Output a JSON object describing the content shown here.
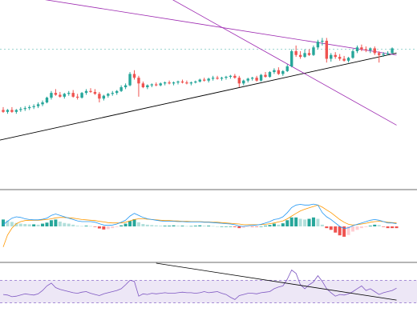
{
  "colors": {
    "background": "#ffffff",
    "up_candle": "#26a69a",
    "down_candle": "#ef5350",
    "trendline": "#000000",
    "channel_line": "#9c27b0",
    "price_level_line": "#26a69a",
    "macd_line": "#2196f3",
    "signal_line": "#ff9800",
    "hist_up_strong": "#26a69a",
    "hist_up_weak": "#b2dfdb",
    "hist_down_strong": "#ef5350",
    "hist_down_weak": "#ffcdd2",
    "rsi_line": "#7e57c2",
    "rsi_band": "#ede7f6",
    "pane_separator": "#6b6b6b"
  },
  "chart_data": [
    {
      "type": "candlestick",
      "title": "",
      "xlabel": "",
      "ylabel": "",
      "grid": false,
      "ylim": [
        0,
        100
      ],
      "price_level": 74,
      "candles": [
        {
          "o": 42,
          "h": 43.5,
          "l": 40.5,
          "c": 41
        },
        {
          "o": 41,
          "h": 42.5,
          "l": 40,
          "c": 42
        },
        {
          "o": 42,
          "h": 43.5,
          "l": 40.5,
          "c": 41
        },
        {
          "o": 41,
          "h": 42.5,
          "l": 40,
          "c": 42
        },
        {
          "o": 42,
          "h": 43.5,
          "l": 41,
          "c": 42.5
        },
        {
          "o": 42.5,
          "h": 44,
          "l": 41.5,
          "c": 43
        },
        {
          "o": 43,
          "h": 44.5,
          "l": 42,
          "c": 43.5
        },
        {
          "o": 43.5,
          "h": 45,
          "l": 42.5,
          "c": 44
        },
        {
          "o": 44,
          "h": 46,
          "l": 43,
          "c": 45
        },
        {
          "o": 45,
          "h": 47,
          "l": 44,
          "c": 46
        },
        {
          "o": 46,
          "h": 49,
          "l": 45.5,
          "c": 48.5
        },
        {
          "o": 48.5,
          "h": 52,
          "l": 47.5,
          "c": 51
        },
        {
          "o": 51,
          "h": 53,
          "l": 49.5,
          "c": 50
        },
        {
          "o": 50,
          "h": 51.5,
          "l": 48.5,
          "c": 49
        },
        {
          "o": 49,
          "h": 51,
          "l": 48,
          "c": 50.5
        },
        {
          "o": 50.5,
          "h": 52,
          "l": 49.5,
          "c": 51
        },
        {
          "o": 51,
          "h": 52.5,
          "l": 48.5,
          "c": 49
        },
        {
          "o": 49,
          "h": 50.5,
          "l": 47.5,
          "c": 48.5
        },
        {
          "o": 48.5,
          "h": 51.5,
          "l": 48,
          "c": 51
        },
        {
          "o": 51,
          "h": 53,
          "l": 50,
          "c": 52
        },
        {
          "o": 52,
          "h": 53.5,
          "l": 51,
          "c": 51.5
        },
        {
          "o": 51.5,
          "h": 53,
          "l": 50,
          "c": 50.5
        },
        {
          "o": 50.5,
          "h": 51.5,
          "l": 46,
          "c": 48
        },
        {
          "o": 48,
          "h": 50,
          "l": 47,
          "c": 49.5
        },
        {
          "o": 49.5,
          "h": 51,
          "l": 48.5,
          "c": 50.5
        },
        {
          "o": 50.5,
          "h": 52,
          "l": 49.5,
          "c": 51
        },
        {
          "o": 51,
          "h": 52.5,
          "l": 50,
          "c": 52
        },
        {
          "o": 52,
          "h": 55,
          "l": 51.5,
          "c": 54
        },
        {
          "o": 54,
          "h": 56,
          "l": 53,
          "c": 55
        },
        {
          "o": 55,
          "h": 62,
          "l": 54.5,
          "c": 61
        },
        {
          "o": 61,
          "h": 63,
          "l": 58,
          "c": 59
        },
        {
          "o": 59,
          "h": 60,
          "l": 49,
          "c": 56
        },
        {
          "o": 56,
          "h": 57,
          "l": 53.5,
          "c": 54
        },
        {
          "o": 54,
          "h": 55.5,
          "l": 53,
          "c": 55
        },
        {
          "o": 55,
          "h": 56,
          "l": 54,
          "c": 55.5
        },
        {
          "o": 55.5,
          "h": 56.5,
          "l": 54.5,
          "c": 55
        },
        {
          "o": 55,
          "h": 56.5,
          "l": 54.5,
          "c": 56
        },
        {
          "o": 56,
          "h": 57,
          "l": 55,
          "c": 56.5
        },
        {
          "o": 56.5,
          "h": 57.5,
          "l": 55.5,
          "c": 56
        },
        {
          "o": 56,
          "h": 57,
          "l": 55,
          "c": 56.5
        },
        {
          "o": 56.5,
          "h": 57.5,
          "l": 55.5,
          "c": 57
        },
        {
          "o": 57,
          "h": 58,
          "l": 56,
          "c": 56.5
        },
        {
          "o": 56.5,
          "h": 57.5,
          "l": 55.5,
          "c": 56
        },
        {
          "o": 56,
          "h": 57,
          "l": 55,
          "c": 56.5
        },
        {
          "o": 56.5,
          "h": 57.5,
          "l": 56,
          "c": 57
        },
        {
          "o": 57,
          "h": 58.5,
          "l": 56.5,
          "c": 58
        },
        {
          "o": 58,
          "h": 59,
          "l": 57,
          "c": 57.5
        },
        {
          "o": 57.5,
          "h": 59,
          "l": 56.5,
          "c": 58.5
        },
        {
          "o": 58.5,
          "h": 60,
          "l": 57.5,
          "c": 59
        },
        {
          "o": 59,
          "h": 60,
          "l": 58,
          "c": 58.5
        },
        {
          "o": 58.5,
          "h": 59.5,
          "l": 57.5,
          "c": 59
        },
        {
          "o": 59,
          "h": 60,
          "l": 58,
          "c": 59.5
        },
        {
          "o": 59.5,
          "h": 60.5,
          "l": 58.5,
          "c": 60
        },
        {
          "o": 60,
          "h": 61,
          "l": 58.5,
          "c": 59
        },
        {
          "o": 59,
          "h": 60,
          "l": 54,
          "c": 56
        },
        {
          "o": 56,
          "h": 58,
          "l": 55,
          "c": 57.5
        },
        {
          "o": 57.5,
          "h": 59,
          "l": 56.5,
          "c": 58.5
        },
        {
          "o": 58.5,
          "h": 59.5,
          "l": 57.5,
          "c": 59
        },
        {
          "o": 59,
          "h": 60,
          "l": 57,
          "c": 57.5
        },
        {
          "o": 57.5,
          "h": 61,
          "l": 57,
          "c": 60.5
        },
        {
          "o": 60.5,
          "h": 62,
          "l": 59,
          "c": 59.5
        },
        {
          "o": 59.5,
          "h": 62.5,
          "l": 59,
          "c": 62
        },
        {
          "o": 62,
          "h": 64,
          "l": 61,
          "c": 63
        },
        {
          "o": 63,
          "h": 64.5,
          "l": 60.5,
          "c": 61
        },
        {
          "o": 61,
          "h": 63,
          "l": 60,
          "c": 62.5
        },
        {
          "o": 62.5,
          "h": 66,
          "l": 62,
          "c": 65
        },
        {
          "o": 65,
          "h": 74,
          "l": 64.5,
          "c": 73
        },
        {
          "o": 73,
          "h": 76,
          "l": 70,
          "c": 71
        },
        {
          "o": 71,
          "h": 73,
          "l": 69,
          "c": 70
        },
        {
          "o": 70,
          "h": 74,
          "l": 69.5,
          "c": 72
        },
        {
          "o": 72,
          "h": 74,
          "l": 70.5,
          "c": 71
        },
        {
          "o": 71,
          "h": 76,
          "l": 70.5,
          "c": 75
        },
        {
          "o": 75,
          "h": 79,
          "l": 74,
          "c": 78
        },
        {
          "o": 78,
          "h": 80,
          "l": 76,
          "c": 78.5
        },
        {
          "o": 78.5,
          "h": 80,
          "l": 67,
          "c": 69
        },
        {
          "o": 69,
          "h": 72,
          "l": 67.5,
          "c": 71
        },
        {
          "o": 71,
          "h": 72.5,
          "l": 69,
          "c": 70
        },
        {
          "o": 70,
          "h": 71.5,
          "l": 68,
          "c": 69
        },
        {
          "o": 69,
          "h": 70.5,
          "l": 67.5,
          "c": 68
        },
        {
          "o": 68,
          "h": 70,
          "l": 67,
          "c": 69.5
        },
        {
          "o": 69.5,
          "h": 74,
          "l": 69,
          "c": 73
        },
        {
          "o": 73,
          "h": 76,
          "l": 72,
          "c": 75
        },
        {
          "o": 75,
          "h": 76.5,
          "l": 73,
          "c": 74
        },
        {
          "o": 74,
          "h": 75.5,
          "l": 72.5,
          "c": 73.5
        },
        {
          "o": 73.5,
          "h": 75,
          "l": 72,
          "c": 74.5
        },
        {
          "o": 74.5,
          "h": 75.5,
          "l": 71,
          "c": 72
        },
        {
          "o": 72,
          "h": 73,
          "l": 67,
          "c": 71
        },
        {
          "o": 71,
          "h": 72.5,
          "l": 70,
          "c": 71.5
        },
        {
          "o": 71.5,
          "h": 73,
          "l": 71,
          "c": 72
        },
        {
          "o": 72,
          "h": 75,
          "l": 71.5,
          "c": 74.5
        }
      ],
      "trendlines": [
        {
          "kind": "ascending-support",
          "from": [
            -1,
            26
          ],
          "to": [
            90,
            72
          ]
        },
        {
          "kind": "upper-channel",
          "from": [
            -1,
            104
          ],
          "to": [
            90,
            71
          ]
        },
        {
          "kind": "lower-channel",
          "from": [
            35,
            105
          ],
          "to": [
            90,
            34
          ]
        }
      ]
    },
    {
      "type": "macd",
      "title": "",
      "grid": false,
      "ylim": [
        -1,
        1
      ],
      "histogram": [
        0.2,
        0.17,
        0.13,
        0.1,
        0.08,
        0.07,
        0.06,
        0.06,
        0.05,
        0.08,
        0.11,
        0.18,
        0.2,
        0.14,
        0.1,
        0.08,
        0.05,
        0.02,
        0.01,
        0.02,
        0.01,
        -0.01,
        -0.06,
        -0.09,
        -0.08,
        -0.05,
        -0.02,
        0.03,
        0.08,
        0.16,
        0.21,
        0.12,
        0.07,
        0.05,
        0.04,
        0.03,
        0.02,
        0.02,
        0.02,
        0.03,
        0.02,
        0.02,
        0.01,
        0.01,
        0.02,
        0.03,
        0.02,
        0.02,
        0.01,
        0.0,
        0.0,
        0.0,
        0.0,
        -0.02,
        -0.05,
        -0.04,
        -0.01,
        -0.01,
        -0.01,
        0.0,
        0.02,
        0.04,
        0.08,
        0.05,
        0.09,
        0.18,
        0.26,
        0.26,
        0.22,
        0.2,
        0.22,
        0.26,
        0.22,
        0.05,
        -0.05,
        -0.1,
        -0.18,
        -0.26,
        -0.3,
        -0.25,
        -0.15,
        -0.1,
        -0.05,
        -0.02,
        0.02,
        0.05,
        0.04,
        -0.01,
        -0.05,
        -0.05,
        -0.05
      ],
      "macd_line": [
        0.05,
        0.15,
        0.24,
        0.28,
        0.26,
        0.22,
        0.2,
        0.19,
        0.19,
        0.21,
        0.24,
        0.32,
        0.36,
        0.32,
        0.28,
        0.24,
        0.2,
        0.16,
        0.14,
        0.14,
        0.14,
        0.12,
        0.08,
        0.04,
        0.03,
        0.04,
        0.07,
        0.12,
        0.18,
        0.3,
        0.38,
        0.32,
        0.26,
        0.22,
        0.2,
        0.18,
        0.16,
        0.15,
        0.15,
        0.15,
        0.14,
        0.14,
        0.13,
        0.13,
        0.13,
        0.13,
        0.12,
        0.12,
        0.11,
        0.1,
        0.09,
        0.08,
        0.07,
        0.05,
        0.01,
        0.0,
        0.02,
        0.03,
        0.04,
        0.06,
        0.1,
        0.14,
        0.2,
        0.22,
        0.28,
        0.4,
        0.55,
        0.62,
        0.64,
        0.62,
        0.62,
        0.65,
        0.62,
        0.4,
        0.28,
        0.2,
        0.1,
        0.0,
        -0.06,
        -0.04,
        0.02,
        0.06,
        0.1,
        0.14,
        0.18,
        0.2,
        0.18,
        0.14,
        0.1,
        0.1,
        0.08
      ],
      "signal_line": [
        -0.6,
        -0.25,
        -0.05,
        0.08,
        0.14,
        0.17,
        0.18,
        0.18,
        0.18,
        0.19,
        0.2,
        0.22,
        0.25,
        0.26,
        0.26,
        0.25,
        0.24,
        0.22,
        0.2,
        0.19,
        0.18,
        0.17,
        0.15,
        0.13,
        0.11,
        0.1,
        0.1,
        0.1,
        0.12,
        0.16,
        0.2,
        0.22,
        0.22,
        0.21,
        0.2,
        0.19,
        0.18,
        0.17,
        0.17,
        0.16,
        0.16,
        0.15,
        0.15,
        0.14,
        0.14,
        0.14,
        0.13,
        0.13,
        0.12,
        0.12,
        0.11,
        0.1,
        0.09,
        0.08,
        0.07,
        0.05,
        0.05,
        0.05,
        0.05,
        0.05,
        0.06,
        0.08,
        0.1,
        0.13,
        0.16,
        0.22,
        0.3,
        0.38,
        0.45,
        0.5,
        0.54,
        0.58,
        0.62,
        0.56,
        0.48,
        0.4,
        0.3,
        0.2,
        0.12,
        0.06,
        0.04,
        0.05,
        0.07,
        0.09,
        0.12,
        0.14,
        0.15,
        0.14,
        0.12,
        0.11,
        0.1
      ]
    },
    {
      "type": "line",
      "title": "",
      "grid": false,
      "ylim": [
        0,
        100
      ],
      "band": [
        30,
        70
      ],
      "rsi": [
        45,
        44,
        41,
        42,
        44,
        46,
        45,
        44,
        46,
        52,
        60,
        65,
        57,
        54,
        52,
        50,
        48,
        47,
        49,
        50,
        47,
        45,
        43,
        46,
        48,
        50,
        52,
        55,
        62,
        70,
        68,
        42,
        46,
        45,
        47,
        46,
        47,
        48,
        47,
        47,
        48,
        49,
        48,
        48,
        47,
        48,
        50,
        48,
        49,
        50,
        47,
        45,
        40,
        36,
        43,
        45,
        47,
        47,
        46,
        48,
        49,
        50,
        55,
        58,
        60,
        72,
        88,
        82,
        62,
        55,
        62,
        67,
        78,
        68,
        55,
        48,
        42,
        45,
        44,
        46,
        50,
        55,
        60,
        52,
        55,
        50,
        45,
        48,
        50,
        52,
        56
      ],
      "trendline": {
        "from": [
          35,
          100
        ],
        "to": [
          90,
          35
        ]
      }
    }
  ]
}
